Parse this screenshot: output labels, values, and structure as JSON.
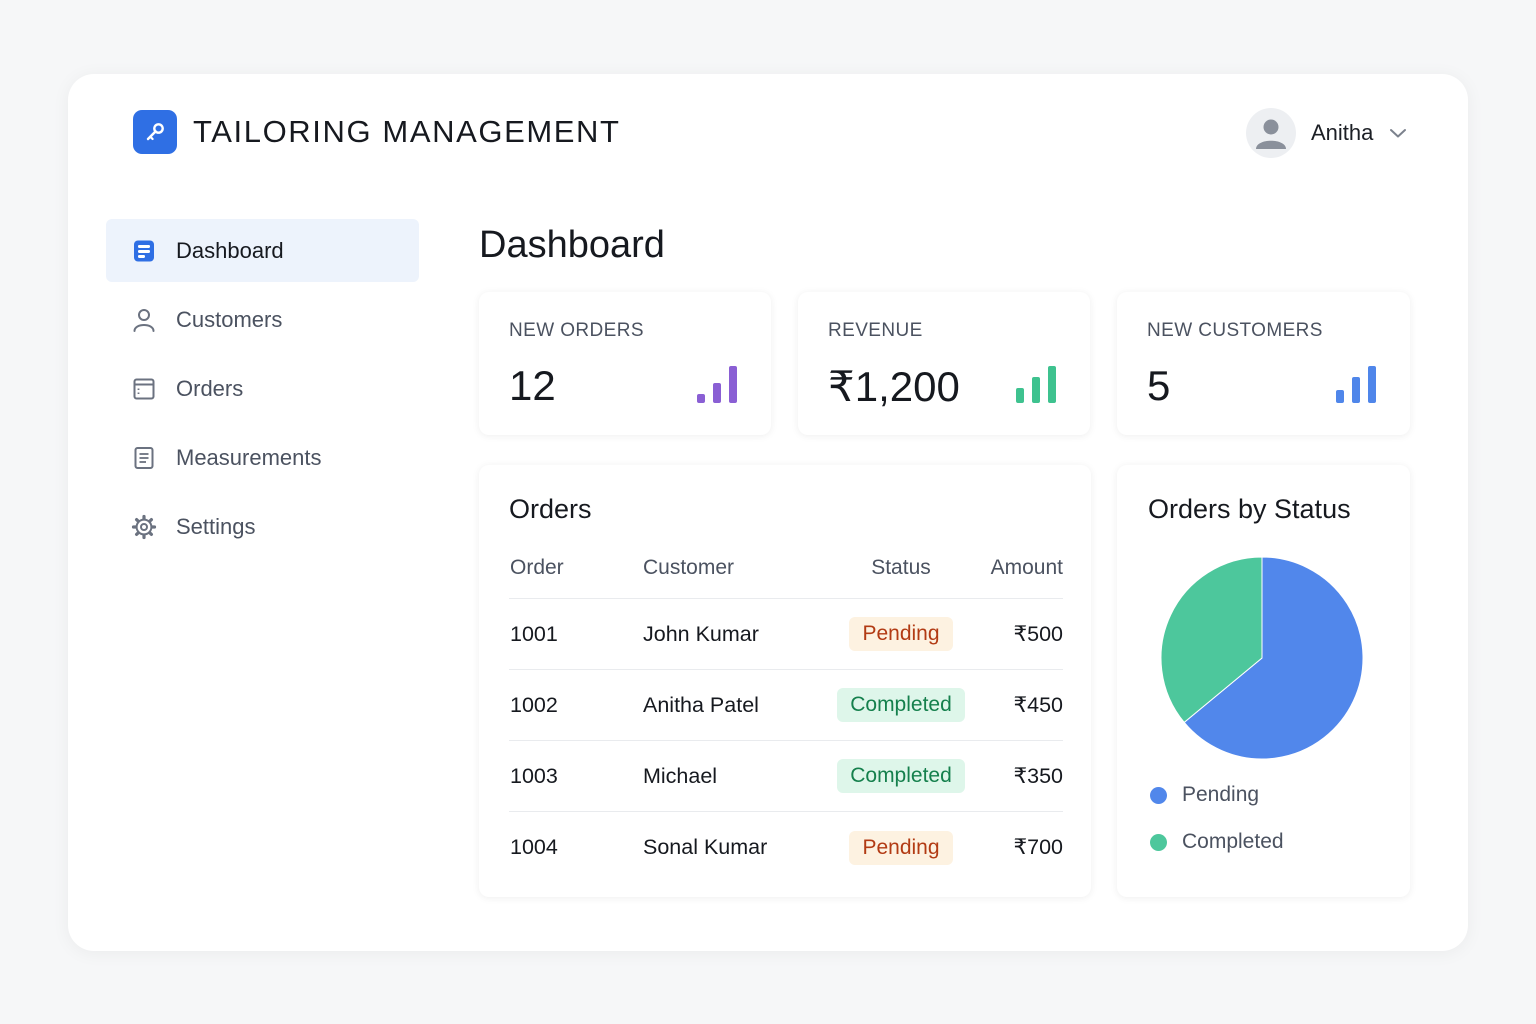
{
  "header": {
    "app_title": "TAILORING MANAGEMENT",
    "logo_icon": "key-icon",
    "user": {
      "name": "Anitha",
      "avatar_icon": "user-avatar-icon"
    }
  },
  "sidebar": {
    "items": [
      {
        "label": "Dashboard",
        "icon": "dashboard-icon",
        "active": true
      },
      {
        "label": "Customers",
        "icon": "person-icon",
        "active": false
      },
      {
        "label": "Orders",
        "icon": "window-icon",
        "active": false
      },
      {
        "label": "Measurements",
        "icon": "document-icon",
        "active": false
      },
      {
        "label": "Settings",
        "icon": "gear-icon",
        "active": false
      }
    ]
  },
  "main": {
    "title": "Dashboard",
    "stats": [
      {
        "label": "NEW ORDERS",
        "value": "12",
        "accent": "#8a5fd4"
      },
      {
        "label": "REVENUE",
        "value": "₹1,200",
        "accent": "#3ec28f"
      },
      {
        "label": "NEW CUSTOMERS",
        "value": "5",
        "accent": "#4f86ea"
      }
    ],
    "orders": {
      "title": "Orders",
      "columns": [
        "Order",
        "Customer",
        "Status",
        "Amount"
      ],
      "rows": [
        {
          "order": "1001",
          "customer": "John Kumar",
          "status": "Pending",
          "amount": "₹500"
        },
        {
          "order": "1002",
          "customer": "Anitha Patel",
          "status": "Completed",
          "amount": "₹450"
        },
        {
          "order": "1003",
          "customer": "Michael",
          "status": "Completed",
          "amount": "₹350"
        },
        {
          "order": "1004",
          "customer": "Sonal Kumar",
          "status": "Pending",
          "amount": "₹700"
        }
      ]
    },
    "status_chart": {
      "title": "Orders by Status",
      "legend": [
        {
          "label": "Pending",
          "color": "#5187eb"
        },
        {
          "label": "Completed",
          "color": "#4dc79c"
        }
      ]
    }
  },
  "chart_data": {
    "type": "pie",
    "title": "Orders by Status",
    "categories": [
      "Pending",
      "Completed"
    ],
    "values": [
      64,
      36
    ],
    "colors": [
      "#5187eb",
      "#4dc79c"
    ],
    "legend": "bottom"
  },
  "colors": {
    "brand": "#2f6fe4",
    "active_nav_bg": "#edf3fc",
    "pending_bg": "#fdf2e1",
    "pending_text": "#b23b14",
    "completed_bg": "#def6ea",
    "completed_text": "#15804d"
  }
}
